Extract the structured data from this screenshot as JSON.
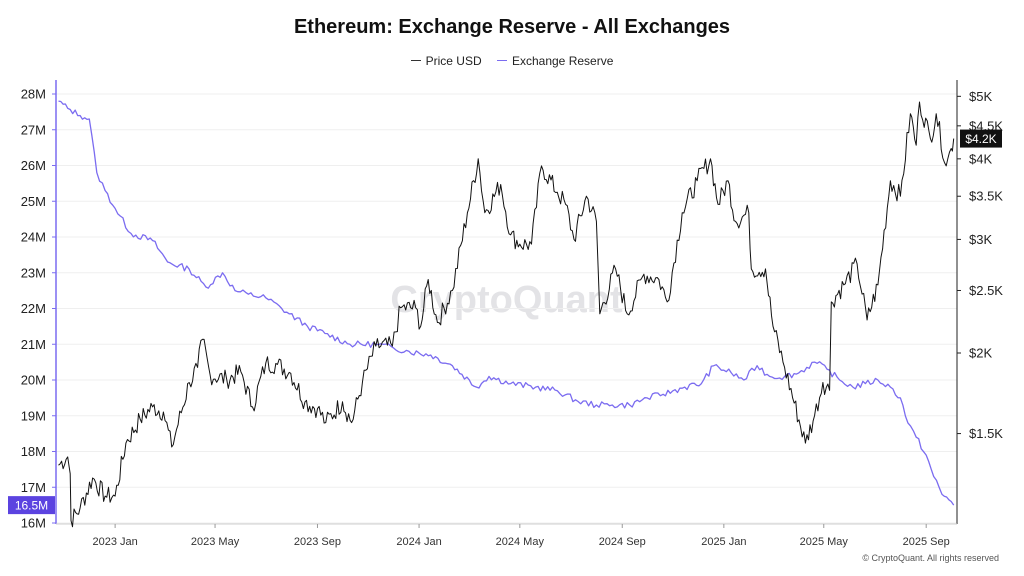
{
  "chart_data": {
    "type": "line",
    "title": "Ethereum: Exchange Reserve - All Exchanges",
    "watermark": "CryptoQuant",
    "footer": "© CryptoQuant. All rights reserved",
    "x_ticks": [
      "2023 Jan",
      "2023 May",
      "2023 Sep",
      "2024 Jan",
      "2024 May",
      "2024 Sep",
      "2025 Jan",
      "2025 May",
      "2025 Sep"
    ],
    "left_axis": {
      "ticks": [
        "28M",
        "27M",
        "26M",
        "25M",
        "24M",
        "23M",
        "22M",
        "21M",
        "20M",
        "19M",
        "18M",
        "17M",
        "16M"
      ],
      "min": 16,
      "max": 28,
      "unit": "M"
    },
    "right_axis": {
      "ticks": [
        "$5K",
        "$4.5K",
        "$4K",
        "$3.5K",
        "$3K",
        "$2.5K",
        "$2K",
        "$1.5K"
      ],
      "values": [
        5000,
        4500,
        4000,
        3500,
        3000,
        2500,
        2000,
        1500
      ],
      "scale": "log"
    },
    "current_labels": {
      "reserve": "16.5M",
      "price": "$4.2K"
    },
    "colors": {
      "price": "#111111",
      "reserve": "#7b6cf0",
      "reserve_badge": "#5b43e0",
      "price_badge": "#111111"
    },
    "series": [
      {
        "name": "Price USD",
        "axis": "right",
        "points": [
          [
            "2022-10-25",
            1340
          ],
          [
            "2022-11-05",
            1380
          ],
          [
            "2022-11-08",
            1300
          ],
          [
            "2022-11-09",
            1100
          ],
          [
            "2022-11-20",
            1150
          ],
          [
            "2022-12-05",
            1280
          ],
          [
            "2022-12-20",
            1200
          ],
          [
            "2023-01-01",
            1200
          ],
          [
            "2023-01-14",
            1450
          ],
          [
            "2023-01-31",
            1580
          ],
          [
            "2023-02-15",
            1650
          ],
          [
            "2023-02-28",
            1620
          ],
          [
            "2023-03-10",
            1430
          ],
          [
            "2023-03-31",
            1800
          ],
          [
            "2023-04-10",
            1900
          ],
          [
            "2023-04-16",
            2100
          ],
          [
            "2023-04-25",
            1850
          ],
          [
            "2023-05-15",
            1820
          ],
          [
            "2023-06-01",
            1870
          ],
          [
            "2023-06-15",
            1650
          ],
          [
            "2023-07-01",
            1930
          ],
          [
            "2023-07-15",
            1920
          ],
          [
            "2023-07-31",
            1860
          ],
          [
            "2023-08-17",
            1680
          ],
          [
            "2023-09-01",
            1640
          ],
          [
            "2023-09-11",
            1560
          ],
          [
            "2023-10-01",
            1680
          ],
          [
            "2023-10-12",
            1560
          ],
          [
            "2023-10-25",
            1800
          ],
          [
            "2023-11-10",
            2050
          ],
          [
            "2023-11-30",
            2050
          ],
          [
            "2023-12-10",
            2350
          ],
          [
            "2023-12-28",
            2350
          ],
          [
            "2024-01-03",
            2200
          ],
          [
            "2024-01-12",
            2600
          ],
          [
            "2024-01-23",
            2230
          ],
          [
            "2024-02-10",
            2500
          ],
          [
            "2024-02-28",
            3300
          ],
          [
            "2024-03-12",
            4000
          ],
          [
            "2024-03-20",
            3300
          ],
          [
            "2024-04-08",
            3650
          ],
          [
            "2024-04-20",
            3050
          ],
          [
            "2024-05-01",
            2950
          ],
          [
            "2024-05-15",
            2950
          ],
          [
            "2024-05-27",
            3900
          ],
          [
            "2024-06-15",
            3550
          ],
          [
            "2024-06-25",
            3400
          ],
          [
            "2024-07-05",
            3000
          ],
          [
            "2024-07-20",
            3500
          ],
          [
            "2024-08-01",
            3200
          ],
          [
            "2024-08-05",
            2300
          ],
          [
            "2024-08-24",
            2700
          ],
          [
            "2024-09-07",
            2300
          ],
          [
            "2024-09-27",
            2650
          ],
          [
            "2024-10-15",
            2600
          ],
          [
            "2024-10-25",
            2400
          ],
          [
            "2024-11-12",
            3300
          ],
          [
            "2024-11-30",
            3700
          ],
          [
            "2024-12-16",
            4000
          ],
          [
            "2024-12-25",
            3400
          ],
          [
            "2025-01-06",
            3700
          ],
          [
            "2025-01-15",
            3200
          ],
          [
            "2025-01-31",
            3300
          ],
          [
            "2025-02-03",
            2700
          ],
          [
            "2025-02-20",
            2700
          ],
          [
            "2025-03-01",
            2200
          ],
          [
            "2025-03-15",
            1900
          ],
          [
            "2025-04-09",
            1450
          ],
          [
            "2025-04-20",
            1600
          ],
          [
            "2025-04-30",
            1800
          ],
          [
            "2025-05-08",
            1750
          ],
          [
            "2025-05-10",
            2400
          ],
          [
            "2025-05-25",
            2550
          ],
          [
            "2025-06-10",
            2750
          ],
          [
            "2025-06-22",
            2250
          ],
          [
            "2025-07-05",
            2550
          ],
          [
            "2025-07-20",
            3700
          ],
          [
            "2025-08-01",
            3500
          ],
          [
            "2025-08-13",
            4700
          ],
          [
            "2025-08-20",
            4200
          ],
          [
            "2025-08-24",
            4900
          ],
          [
            "2025-09-06",
            4300
          ],
          [
            "2025-09-13",
            4700
          ],
          [
            "2025-09-25",
            3900
          ],
          [
            "2025-10-01",
            4150
          ],
          [
            "2025-10-04",
            4300
          ]
        ]
      },
      {
        "name": "Exchange Reserve",
        "axis": "left",
        "points": [
          [
            "2022-10-25",
            27.8
          ],
          [
            "2022-11-05",
            27.6
          ],
          [
            "2022-11-20",
            27.4
          ],
          [
            "2022-12-01",
            27.3
          ],
          [
            "2022-12-10",
            25.8
          ],
          [
            "2022-12-20",
            25.3
          ],
          [
            "2023-01-01",
            24.8
          ],
          [
            "2023-01-20",
            24.1
          ],
          [
            "2023-02-15",
            23.9
          ],
          [
            "2023-03-05",
            23.3
          ],
          [
            "2023-03-31",
            23.1
          ],
          [
            "2023-04-20",
            22.6
          ],
          [
            "2023-05-10",
            23.0
          ],
          [
            "2023-05-25",
            22.5
          ],
          [
            "2023-06-10",
            22.4
          ],
          [
            "2023-07-01",
            22.3
          ],
          [
            "2023-07-20",
            22.0
          ],
          [
            "2023-08-20",
            21.5
          ],
          [
            "2023-09-10",
            21.3
          ],
          [
            "2023-10-10",
            21.0
          ],
          [
            "2023-11-10",
            21.0
          ],
          [
            "2023-12-01",
            20.9
          ],
          [
            "2023-12-20",
            20.8
          ],
          [
            "2024-01-15",
            20.7
          ],
          [
            "2024-02-10",
            20.4
          ],
          [
            "2024-03-10",
            19.8
          ],
          [
            "2024-03-25",
            20.1
          ],
          [
            "2024-04-20",
            19.9
          ],
          [
            "2024-05-20",
            19.8
          ],
          [
            "2024-06-15",
            19.7
          ],
          [
            "2024-07-10",
            19.4
          ],
          [
            "2024-08-01",
            19.3
          ],
          [
            "2024-08-20",
            19.3
          ],
          [
            "2024-09-10",
            19.3
          ],
          [
            "2024-10-01",
            19.5
          ],
          [
            "2024-10-20",
            19.6
          ],
          [
            "2024-11-15",
            19.8
          ],
          [
            "2024-12-05",
            19.9
          ],
          [
            "2024-12-20",
            20.4
          ],
          [
            "2025-01-10",
            20.2
          ],
          [
            "2025-01-25",
            20.0
          ],
          [
            "2025-02-10",
            20.4
          ],
          [
            "2025-02-25",
            20.1
          ],
          [
            "2025-03-15",
            20.1
          ],
          [
            "2025-04-01",
            20.2
          ],
          [
            "2025-04-20",
            20.5
          ],
          [
            "2025-05-05",
            20.3
          ],
          [
            "2025-05-20",
            20.0
          ],
          [
            "2025-06-05",
            19.8
          ],
          [
            "2025-06-20",
            19.9
          ],
          [
            "2025-07-05",
            20.0
          ],
          [
            "2025-07-20",
            19.8
          ],
          [
            "2025-08-01",
            19.5
          ],
          [
            "2025-08-10",
            18.8
          ],
          [
            "2025-08-20",
            18.4
          ],
          [
            "2025-09-01",
            17.9
          ],
          [
            "2025-09-10",
            17.3
          ],
          [
            "2025-09-20",
            16.8
          ],
          [
            "2025-10-01",
            16.6
          ],
          [
            "2025-10-04",
            16.5
          ]
        ]
      }
    ]
  }
}
